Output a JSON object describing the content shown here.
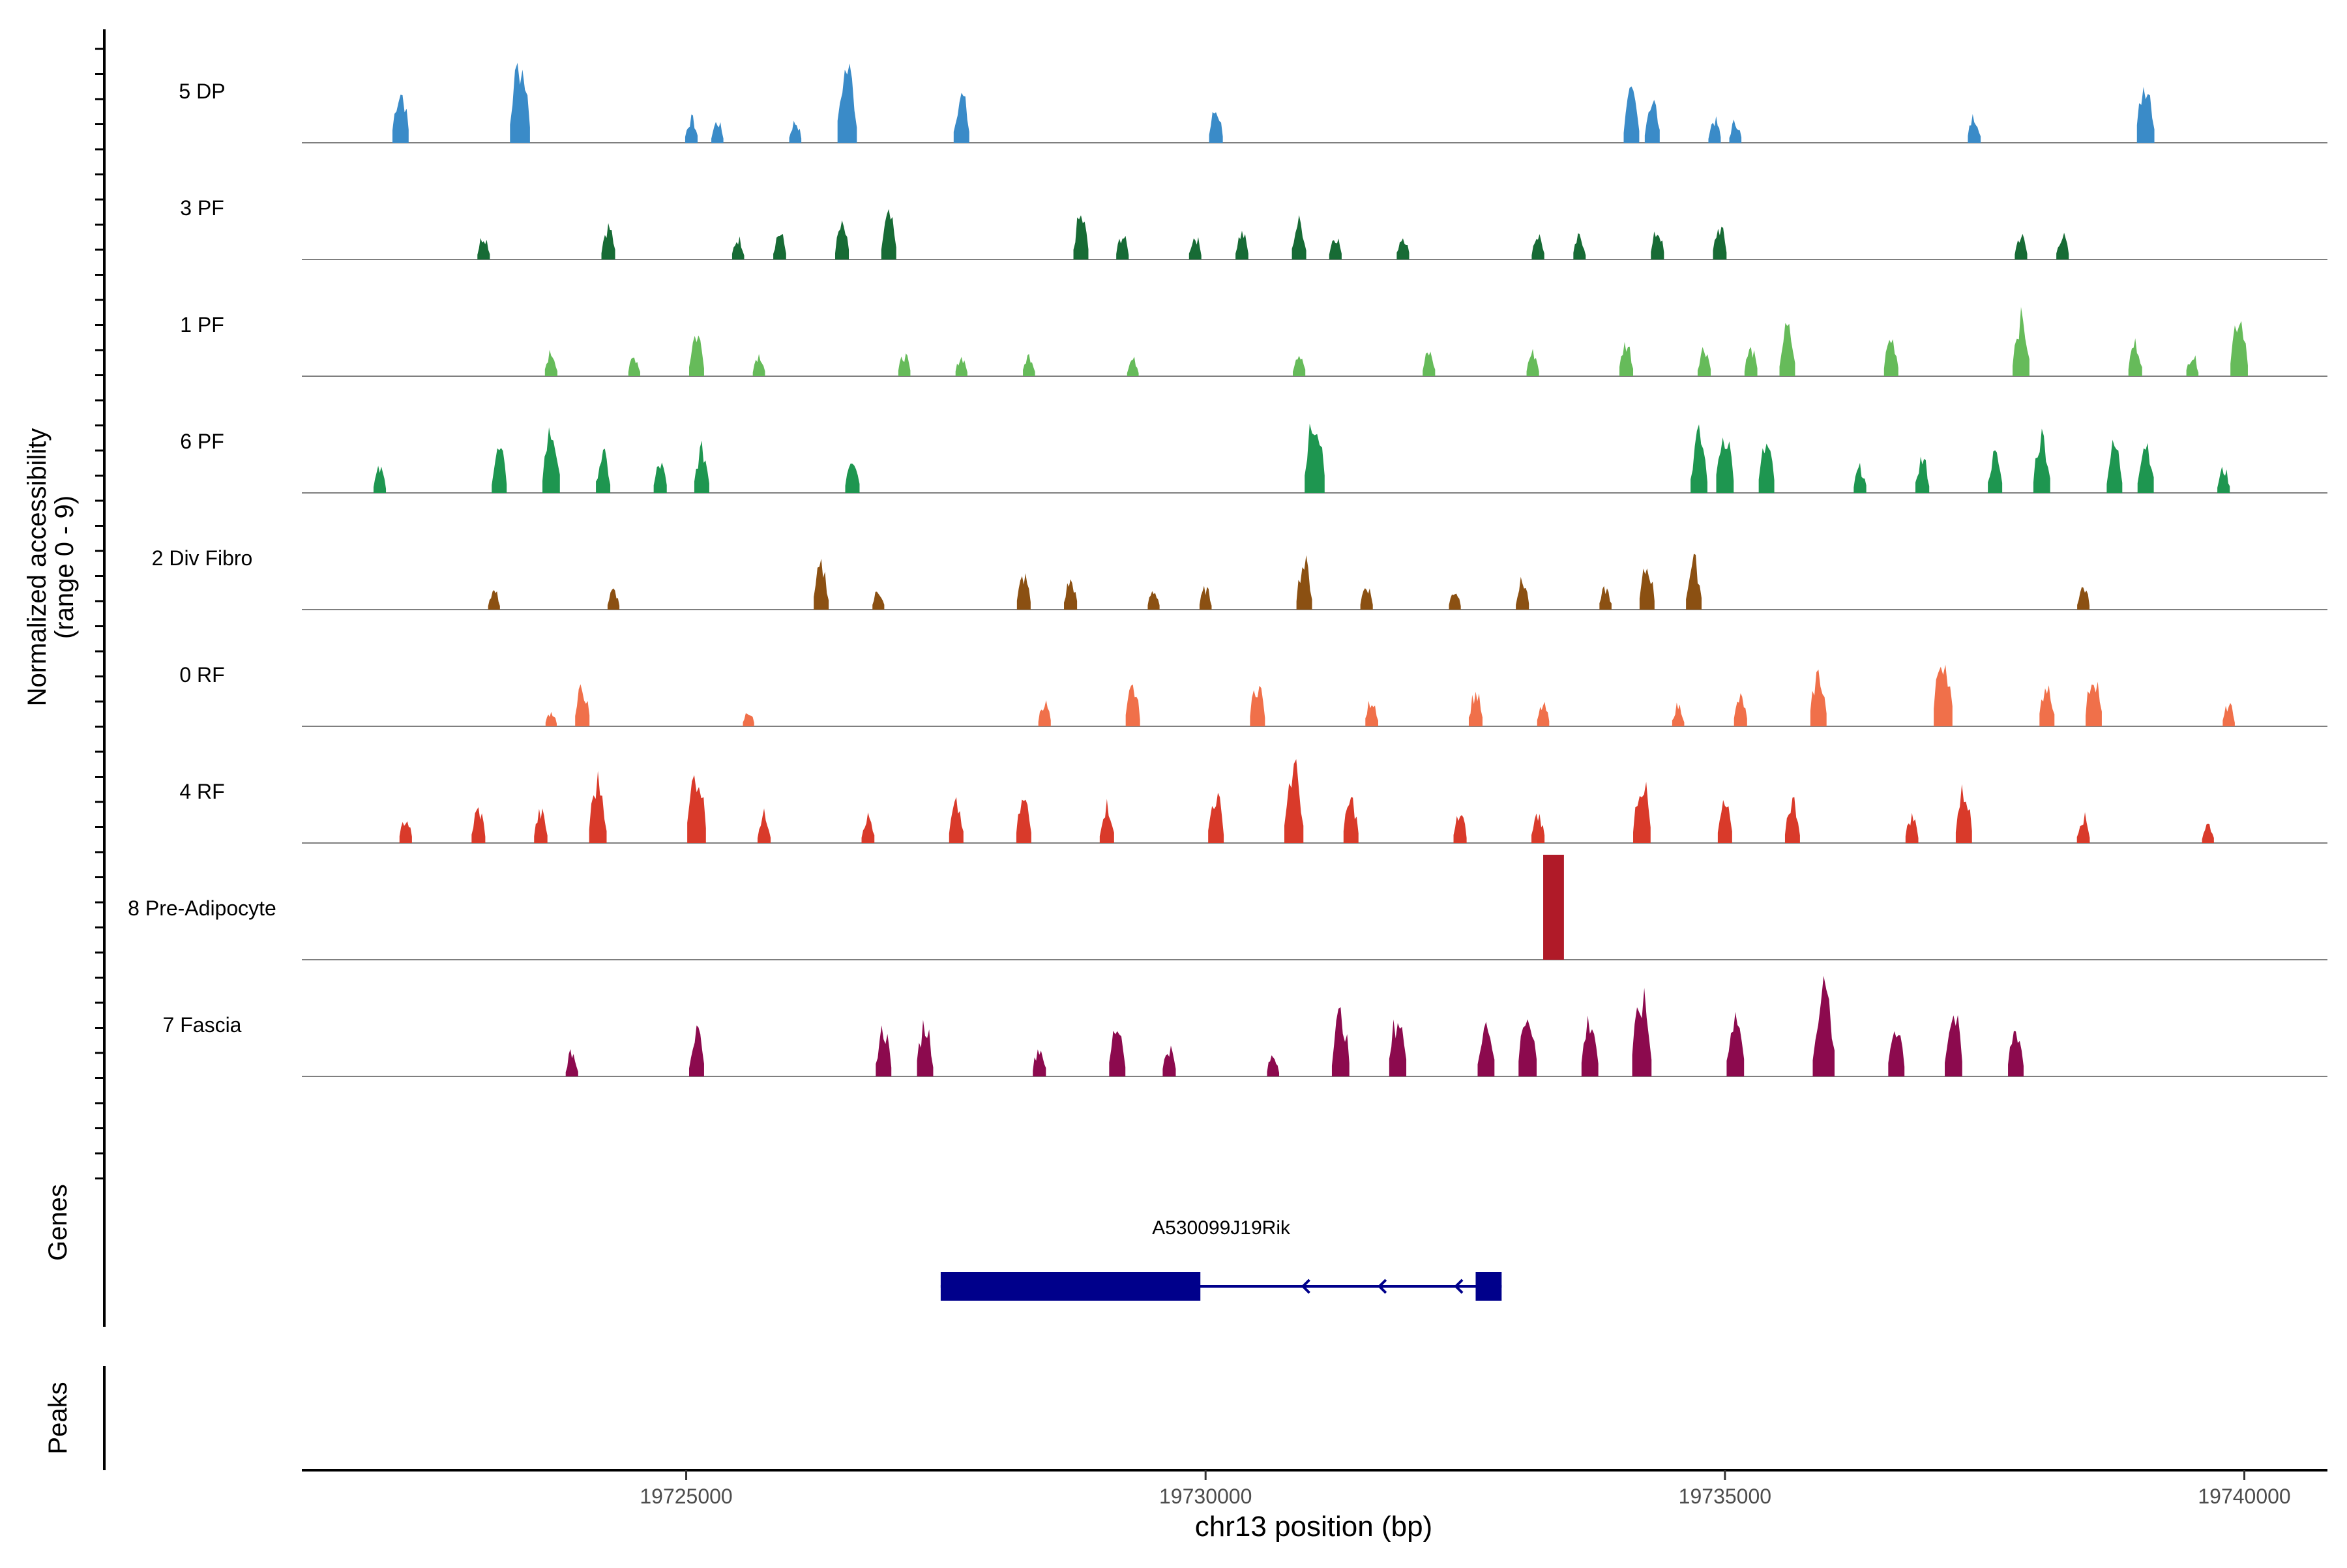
{
  "chart_data": {
    "type": "area",
    "title": "",
    "chromosome": "chr13",
    "xlabel": "chr13 position (bp)",
    "ylabel_line1": "Normalized accessibility",
    "ylabel_line2": "(range 0 - 9)",
    "xlim": [
      19721300,
      19740800
    ],
    "ylim": [
      0,
      9
    ],
    "x_ticks": [
      19725000,
      19730000,
      19735000,
      19740000
    ],
    "x_tick_labels": [
      "19725000",
      "19730000",
      "19735000",
      "19740000"
    ],
    "tracks": [
      {
        "name": "5 DP",
        "color": "#3a8bc8",
        "peaks": [
          [
            19722250,
            5.5
          ],
          [
            19723400,
            8.5
          ],
          [
            19725050,
            2.5
          ],
          [
            19725300,
            2.2
          ],
          [
            19726050,
            2.2
          ],
          [
            19726550,
            8.0
          ],
          [
            19727650,
            5.0
          ],
          [
            19730100,
            3.5
          ],
          [
            19734100,
            5.0
          ],
          [
            19734300,
            4.5
          ],
          [
            19734900,
            2.4
          ],
          [
            19735100,
            2.2
          ],
          [
            19737400,
            2.8
          ],
          [
            19739050,
            6.5
          ]
        ]
      },
      {
        "name": "3 PF",
        "color": "#176b35",
        "peaks": [
          [
            19723050,
            2.5
          ],
          [
            19724250,
            3.5
          ],
          [
            19725500,
            2.2
          ],
          [
            19725900,
            2.8
          ],
          [
            19726500,
            3.5
          ],
          [
            19726950,
            4.5
          ],
          [
            19728800,
            4.5
          ],
          [
            19729200,
            2.5
          ],
          [
            19729900,
            2.4
          ],
          [
            19730350,
            2.8
          ],
          [
            19730900,
            4.0
          ],
          [
            19731250,
            2.5
          ],
          [
            19731900,
            2.5
          ],
          [
            19733200,
            2.6
          ],
          [
            19733600,
            2.4
          ],
          [
            19734350,
            3.0
          ],
          [
            19734950,
            3.4
          ],
          [
            19737850,
            2.5
          ],
          [
            19738250,
            2.5
          ]
        ]
      },
      {
        "name": "1 PF",
        "color": "#66bb5a",
        "peaks": [
          [
            19723700,
            2.5
          ],
          [
            19724500,
            2.0
          ],
          [
            19725100,
            4.5
          ],
          [
            19725700,
            2.3
          ],
          [
            19727100,
            2.2
          ],
          [
            19727650,
            2.0
          ],
          [
            19728300,
            2.2
          ],
          [
            19729300,
            1.8
          ],
          [
            19730900,
            2.5
          ],
          [
            19732150,
            2.5
          ],
          [
            19733150,
            2.5
          ],
          [
            19734050,
            3.5
          ],
          [
            19734800,
            3.0
          ],
          [
            19735250,
            2.8
          ],
          [
            19735600,
            5.0
          ],
          [
            19736600,
            4.0
          ],
          [
            19737850,
            6.0
          ],
          [
            19738950,
            3.5
          ],
          [
            19739500,
            2.2
          ],
          [
            19739950,
            6.5
          ]
        ]
      },
      {
        "name": "6 PF",
        "color": "#1e9650",
        "peaks": [
          [
            19722050,
            2.5
          ],
          [
            19723200,
            4.5
          ],
          [
            19723700,
            6.5
          ],
          [
            19724200,
            4.0
          ],
          [
            19724750,
            3.0
          ],
          [
            19725150,
            4.5
          ],
          [
            19726600,
            4.0
          ],
          [
            19731050,
            8.5
          ],
          [
            19734750,
            6.0
          ],
          [
            19735000,
            6.5
          ],
          [
            19735400,
            5.0
          ],
          [
            19736300,
            2.6
          ],
          [
            19736900,
            3.6
          ],
          [
            19737600,
            4.0
          ],
          [
            19738050,
            6.0
          ],
          [
            19738750,
            5.0
          ],
          [
            19739050,
            5.5
          ],
          [
            19739800,
            2.5
          ]
        ]
      },
      {
        "name": "2 Div Fibro",
        "color": "#8b5012",
        "peaks": [
          [
            19723150,
            2.0
          ],
          [
            19724300,
            2.0
          ],
          [
            19726300,
            4.5
          ],
          [
            19726850,
            2.0
          ],
          [
            19728250,
            3.5
          ],
          [
            19728700,
            3.0
          ],
          [
            19729500,
            2.0
          ],
          [
            19730000,
            2.2
          ],
          [
            19730950,
            5.0
          ],
          [
            19731550,
            2.5
          ],
          [
            19732400,
            2.0
          ],
          [
            19733050,
            3.0
          ],
          [
            19733850,
            2.2
          ],
          [
            19734250,
            4.5
          ],
          [
            19734700,
            5.0
          ],
          [
            19738450,
            2.4
          ]
        ]
      },
      {
        "name": "0 RF",
        "color": "#f0704a",
        "peaks": [
          [
            19723700,
            1.5
          ],
          [
            19724000,
            4.0
          ],
          [
            19725600,
            1.5
          ],
          [
            19728450,
            2.5
          ],
          [
            19729300,
            4.0
          ],
          [
            19730500,
            4.5
          ],
          [
            19731600,
            2.8
          ],
          [
            19732600,
            3.5
          ],
          [
            19733250,
            2.2
          ],
          [
            19734550,
            2.2
          ],
          [
            19735150,
            3.0
          ],
          [
            19735900,
            5.5
          ],
          [
            19737100,
            7.5
          ],
          [
            19738100,
            4.5
          ],
          [
            19738550,
            5.5
          ],
          [
            19739850,
            2.2
          ]
        ]
      },
      {
        "name": "4 RF",
        "color": "#d93a2a",
        "peaks": [
          [
            19722300,
            2.5
          ],
          [
            19723000,
            3.5
          ],
          [
            19723600,
            3.2
          ],
          [
            19724150,
            6.5
          ],
          [
            19725100,
            7.5
          ],
          [
            19725750,
            3.0
          ],
          [
            19726750,
            2.8
          ],
          [
            19727600,
            4.0
          ],
          [
            19728250,
            4.5
          ],
          [
            19729050,
            4.0
          ],
          [
            19730100,
            5.0
          ],
          [
            19730850,
            7.8
          ],
          [
            19731400,
            4.5
          ],
          [
            19732450,
            3.0
          ],
          [
            19733200,
            3.0
          ],
          [
            19734200,
            6.5
          ],
          [
            19735000,
            4.0
          ],
          [
            19735650,
            4.5
          ],
          [
            19736800,
            2.8
          ],
          [
            19737300,
            5.5
          ],
          [
            19738450,
            2.8
          ],
          [
            19739650,
            2.0
          ]
        ]
      },
      {
        "name": "8 Pre-Adipocyte",
        "color": "#b01a28",
        "peaks": [
          [
            19733350,
            12.0
          ]
        ]
      },
      {
        "name": "7 Fascia",
        "color": "#8c0a4e",
        "peaks": [
          [
            19723900,
            2.5
          ],
          [
            19725100,
            4.5
          ],
          [
            19726900,
            5.0
          ],
          [
            19727300,
            5.5
          ],
          [
            19728400,
            3.0
          ],
          [
            19729150,
            5.5
          ],
          [
            19729650,
            3.0
          ],
          [
            19730650,
            2.2
          ],
          [
            19731300,
            6.5
          ],
          [
            19731850,
            6.2
          ],
          [
            19732700,
            6.0
          ],
          [
            19733100,
            7.0
          ],
          [
            19733700,
            6.0
          ],
          [
            19734200,
            8.0
          ],
          [
            19735100,
            6.5
          ],
          [
            19735950,
            10.0
          ],
          [
            19736650,
            5.5
          ],
          [
            19737200,
            6.5
          ],
          [
            19737800,
            5.0
          ]
        ]
      }
    ],
    "genes_label": "Genes",
    "peaks_label": "Peaks",
    "gene": {
      "name": "A530099J19Rik",
      "start": 19727450,
      "end": 19732850,
      "strand": "-",
      "color": "#00008b",
      "exons": [
        [
          19727450,
          19729950
        ],
        [
          19732600,
          19732850
        ]
      ]
    }
  }
}
